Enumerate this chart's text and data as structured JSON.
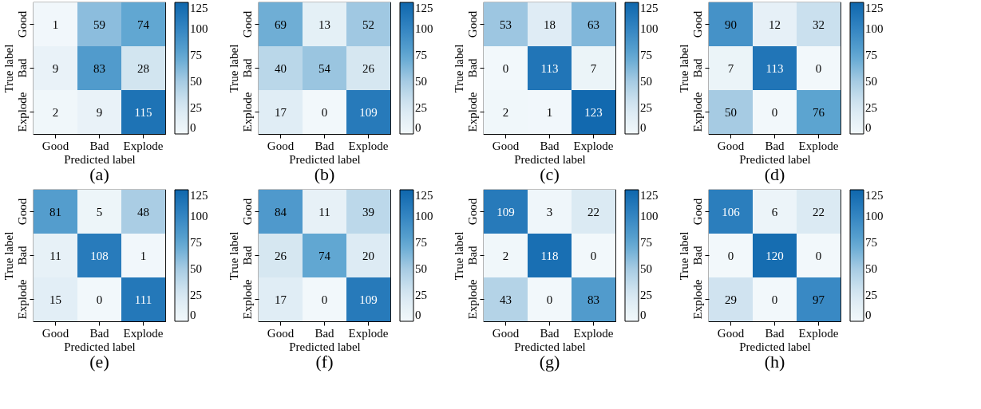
{
  "chart_data": [
    {
      "type": "heatmap",
      "title": "(a)",
      "xlabel": "Predicted label",
      "ylabel": "True label",
      "categories": [
        "Good",
        "Bad",
        "Explode"
      ],
      "y_categories": [
        "Good",
        "Bad",
        "Explode"
      ],
      "cells": [
        [
          1,
          59,
          74
        ],
        [
          9,
          83,
          28
        ],
        [
          2,
          9,
          115
        ]
      ],
      "clim": [
        0,
        125
      ],
      "cticks": [
        0,
        25,
        50,
        75,
        100,
        125
      ],
      "data_labels": true
    },
    {
      "type": "heatmap",
      "title": "(b)",
      "xlabel": "Predicted label",
      "ylabel": "True label",
      "categories": [
        "Good",
        "Bad",
        "Explode"
      ],
      "y_categories": [
        "Good",
        "Bad",
        "Explode"
      ],
      "cells": [
        [
          69,
          13,
          52
        ],
        [
          40,
          54,
          26
        ],
        [
          17,
          0,
          109
        ]
      ],
      "clim": [
        0,
        125
      ],
      "cticks": [
        0,
        25,
        50,
        75,
        100,
        125
      ],
      "data_labels": true
    },
    {
      "type": "heatmap",
      "title": "(c)",
      "xlabel": "Predicted label",
      "ylabel": "True label",
      "categories": [
        "Good",
        "Bad",
        "Explode"
      ],
      "y_categories": [
        "Good",
        "Bad",
        "Explode"
      ],
      "cells": [
        [
          53,
          18,
          63
        ],
        [
          0,
          113,
          7
        ],
        [
          2,
          1,
          123
        ]
      ],
      "clim": [
        0,
        125
      ],
      "cticks": [
        0,
        25,
        50,
        75,
        100,
        125
      ],
      "data_labels": true
    },
    {
      "type": "heatmap",
      "title": "(d)",
      "xlabel": "Predicted label",
      "ylabel": "True label",
      "categories": [
        "Good",
        "Bad",
        "Explode"
      ],
      "y_categories": [
        "Good",
        "Bad",
        "Explode"
      ],
      "cells": [
        [
          90,
          12,
          32
        ],
        [
          7,
          113,
          0
        ],
        [
          50,
          0,
          76
        ]
      ],
      "clim": [
        0,
        125
      ],
      "cticks": [
        0,
        25,
        50,
        75,
        100,
        125
      ],
      "data_labels": true
    },
    {
      "type": "heatmap",
      "title": "(e)",
      "xlabel": "Predicted label",
      "ylabel": "True label",
      "categories": [
        "Good",
        "Bad",
        "Explode"
      ],
      "y_categories": [
        "Good",
        "Bad",
        "Explode"
      ],
      "cells": [
        [
          81,
          5,
          48
        ],
        [
          11,
          108,
          1
        ],
        [
          15,
          0,
          111
        ]
      ],
      "clim": [
        0,
        125
      ],
      "cticks": [
        0,
        25,
        50,
        75,
        100,
        125
      ],
      "data_labels": true
    },
    {
      "type": "heatmap",
      "title": "(f)",
      "xlabel": "Predicted label",
      "ylabel": "True label",
      "categories": [
        "Good",
        "Bad",
        "Explode"
      ],
      "y_categories": [
        "Good",
        "Bad",
        "Explode"
      ],
      "cells": [
        [
          84,
          11,
          39
        ],
        [
          26,
          74,
          20
        ],
        [
          17,
          0,
          109
        ]
      ],
      "clim": [
        0,
        125
      ],
      "cticks": [
        0,
        25,
        50,
        75,
        100,
        125
      ],
      "data_labels": true
    },
    {
      "type": "heatmap",
      "title": "(g)",
      "xlabel": "Predicted label",
      "ylabel": "True label",
      "categories": [
        "Good",
        "Bad",
        "Explode"
      ],
      "y_categories": [
        "Good",
        "Bad",
        "Explode"
      ],
      "cells": [
        [
          109,
          3,
          22
        ],
        [
          2,
          118,
          0
        ],
        [
          43,
          0,
          83
        ]
      ],
      "clim": [
        0,
        125
      ],
      "cticks": [
        0,
        25,
        50,
        75,
        100,
        125
      ],
      "data_labels": true
    },
    {
      "type": "heatmap",
      "title": "(h)",
      "xlabel": "Predicted label",
      "ylabel": "True label",
      "categories": [
        "Good",
        "Bad",
        "Explode"
      ],
      "y_categories": [
        "Good",
        "Bad",
        "Explode"
      ],
      "cells": [
        [
          106,
          6,
          22
        ],
        [
          0,
          120,
          0
        ],
        [
          29,
          0,
          97
        ]
      ],
      "clim": [
        0,
        125
      ],
      "cticks": [
        0,
        25,
        50,
        75,
        100,
        125
      ],
      "data_labels": true
    }
  ]
}
